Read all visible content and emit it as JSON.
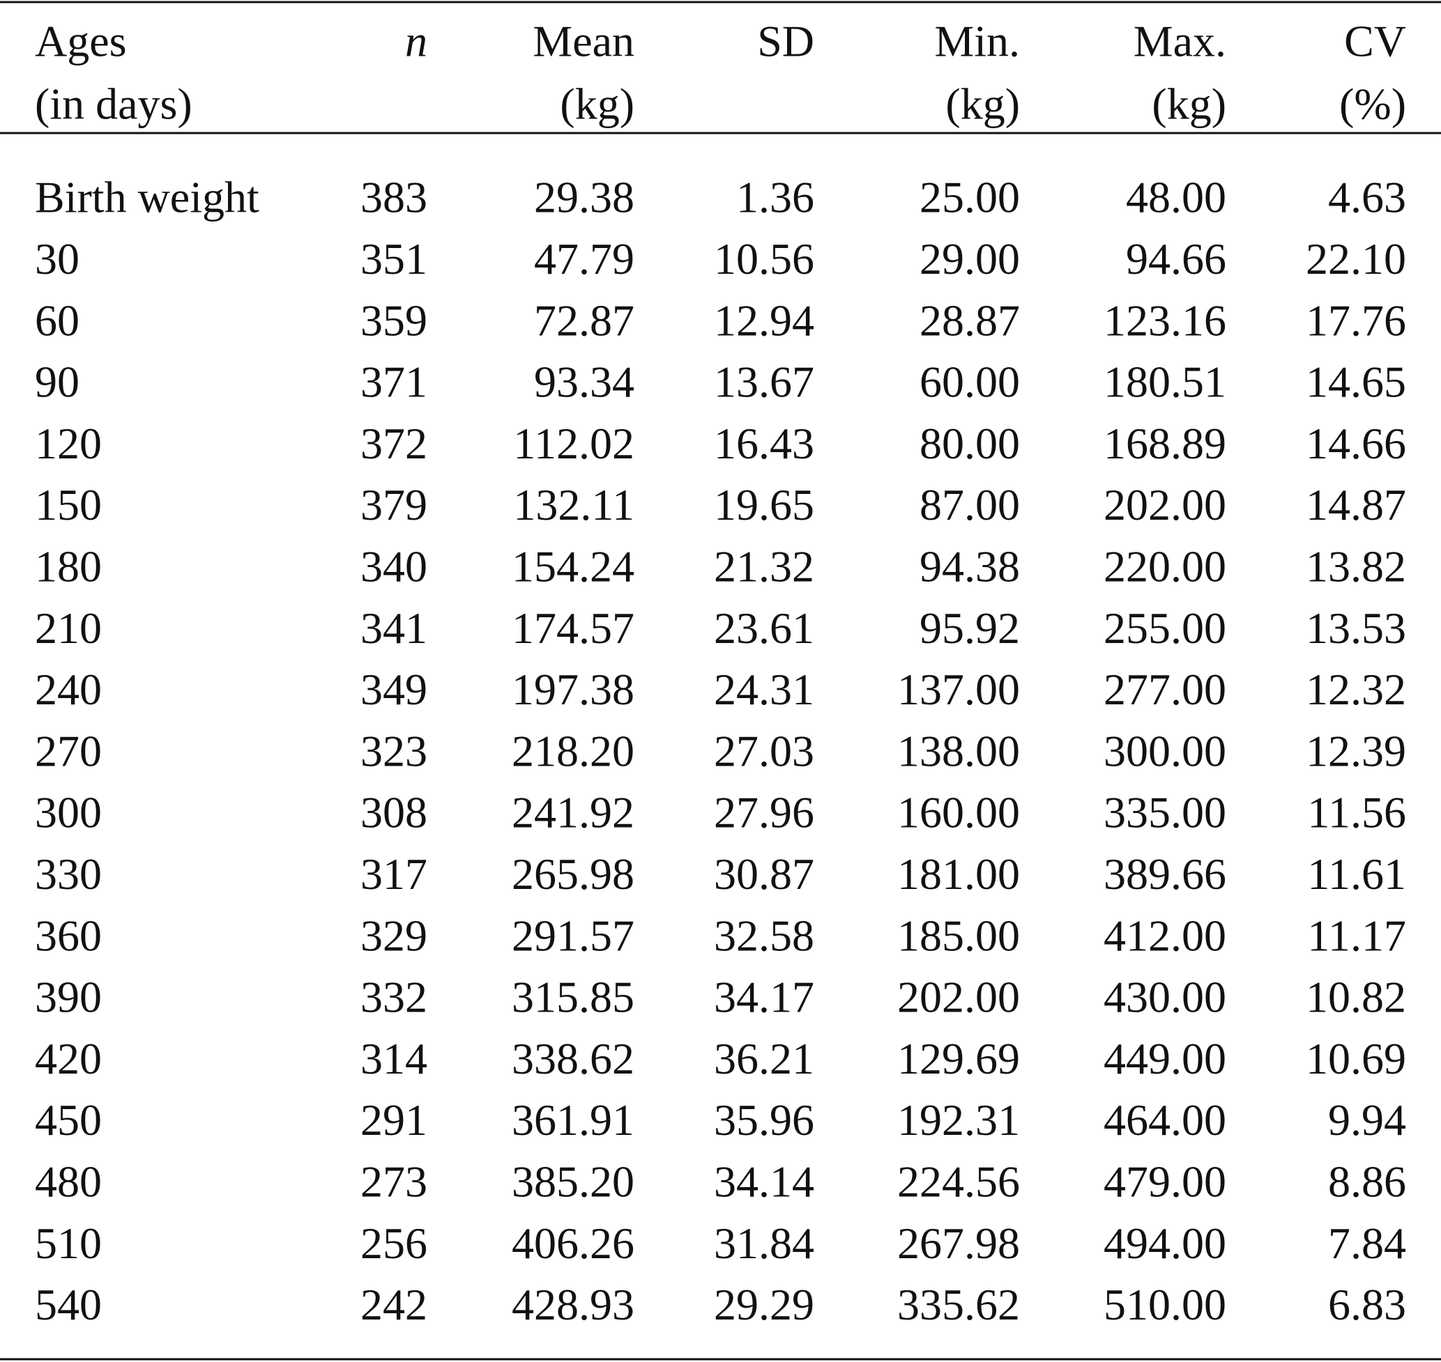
{
  "table": {
    "header": [
      [
        "Ages",
        "(in days)"
      ],
      [
        "n"
      ],
      [
        "Mean",
        "(kg)"
      ],
      [
        "SD"
      ],
      [
        "Min.",
        "(kg)"
      ],
      [
        "Max.",
        "(kg)"
      ],
      [
        "CV",
        "(%)"
      ]
    ],
    "rows": [
      [
        "Birth weight",
        "383",
        "29.38",
        "1.36",
        "25.00",
        "48.00",
        "4.63"
      ],
      [
        "30",
        "351",
        "47.79",
        "10.56",
        "29.00",
        "94.66",
        "22.10"
      ],
      [
        "60",
        "359",
        "72.87",
        "12.94",
        "28.87",
        "123.16",
        "17.76"
      ],
      [
        "90",
        "371",
        "93.34",
        "13.67",
        "60.00",
        "180.51",
        "14.65"
      ],
      [
        "120",
        "372",
        "112.02",
        "16.43",
        "80.00",
        "168.89",
        "14.66"
      ],
      [
        "150",
        "379",
        "132.11",
        "19.65",
        "87.00",
        "202.00",
        "14.87"
      ],
      [
        "180",
        "340",
        "154.24",
        "21.32",
        "94.38",
        "220.00",
        "13.82"
      ],
      [
        "210",
        "341",
        "174.57",
        "23.61",
        "95.92",
        "255.00",
        "13.53"
      ],
      [
        "240",
        "349",
        "197.38",
        "24.31",
        "137.00",
        "277.00",
        "12.32"
      ],
      [
        "270",
        "323",
        "218.20",
        "27.03",
        "138.00",
        "300.00",
        "12.39"
      ],
      [
        "300",
        "308",
        "241.92",
        "27.96",
        "160.00",
        "335.00",
        "11.56"
      ],
      [
        "330",
        "317",
        "265.98",
        "30.87",
        "181.00",
        "389.66",
        "11.61"
      ],
      [
        "360",
        "329",
        "291.57",
        "32.58",
        "185.00",
        "412.00",
        "11.17"
      ],
      [
        "390",
        "332",
        "315.85",
        "34.17",
        "202.00",
        "430.00",
        "10.82"
      ],
      [
        "420",
        "314",
        "338.62",
        "36.21",
        "129.69",
        "449.00",
        "10.69"
      ],
      [
        "450",
        "291",
        "361.91",
        "35.96",
        "192.31",
        "464.00",
        "9.94"
      ],
      [
        "480",
        "273",
        "385.20",
        "34.14",
        "224.56",
        "479.00",
        "8.86"
      ],
      [
        "510",
        "256",
        "406.26",
        "31.84",
        "267.98",
        "494.00",
        "7.84"
      ],
      [
        "540",
        "242",
        "428.93",
        "29.29",
        "335.62",
        "510.00",
        "6.83"
      ]
    ]
  }
}
